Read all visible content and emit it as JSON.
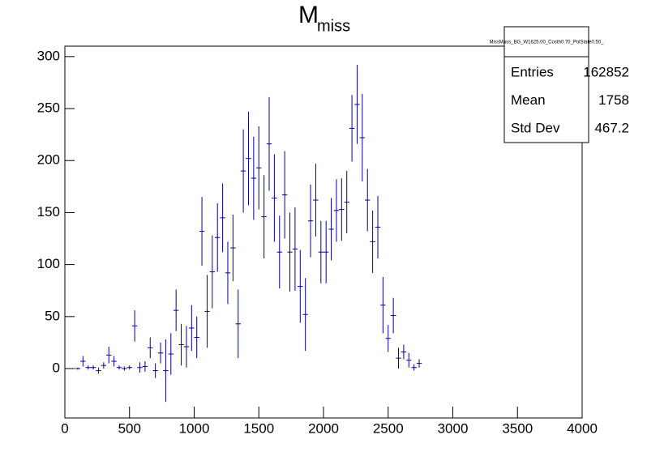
{
  "chart_data": {
    "type": "histogram",
    "title": "M",
    "title_subscript": "miss",
    "bins": [
      80,
      120,
      160,
      200,
      240,
      280,
      320,
      360,
      400,
      440,
      480,
      520,
      560,
      600,
      640,
      680,
      720,
      760,
      800,
      840,
      880,
      920,
      960,
      1000,
      1040,
      1080,
      1120,
      1160,
      1200,
      1240,
      1280,
      1320,
      1360,
      1400,
      1440,
      1480,
      1520,
      1560,
      1600,
      1640,
      1680,
      1720,
      1760,
      1800,
      1840,
      1880,
      1920,
      1960,
      2000,
      2040,
      2080,
      2120,
      2160,
      2200,
      2240,
      2280,
      2320,
      2360,
      2400,
      2440,
      2480,
      2520,
      2560,
      2600,
      2640,
      2680,
      2720,
      2760
    ],
    "values": [
      0,
      7,
      1,
      1,
      -2,
      3,
      13,
      7,
      1,
      0,
      1,
      41,
      1,
      2,
      20,
      -2,
      15,
      -2,
      14,
      56,
      23,
      21,
      39,
      30,
      132,
      55,
      93,
      126,
      145,
      92,
      116,
      43,
      190,
      202,
      183,
      193,
      146,
      216,
      164,
      112,
      167,
      112,
      115,
      79,
      52,
      142,
      162,
      112,
      112,
      134,
      152,
      153,
      160,
      231,
      254,
      222,
      162,
      122,
      136,
      61,
      29,
      51,
      10,
      16,
      8,
      1,
      5
    ],
    "errors": [
      1,
      5,
      2,
      2,
      3,
      3,
      8,
      5,
      2,
      2,
      2,
      15,
      5,
      5,
      10,
      7,
      10,
      30,
      20,
      20,
      20,
      20,
      22,
      20,
      33,
      35,
      35,
      33,
      33,
      30,
      32,
      33,
      40,
      45,
      40,
      40,
      40,
      45,
      42,
      35,
      42,
      38,
      40,
      35,
      35,
      35,
      35,
      30,
      30,
      30,
      30,
      30,
      30,
      32,
      38,
      42,
      30,
      30,
      30,
      27,
      13,
      17,
      10,
      7,
      7,
      3,
      4
    ],
    "color": "#000099",
    "xlim": [
      0,
      4000
    ],
    "xticks": [
      0,
      500,
      1000,
      1500,
      2000,
      2500,
      3000,
      3500,
      4000
    ],
    "ylim": [
      -47.5,
      310
    ],
    "yticks": [
      0,
      50,
      100,
      150,
      200,
      250,
      300
    ],
    "stats": {
      "name": "MissMass_BG_W1625.00_Costh0.70_PolState0.50_",
      "rows": [
        [
          "Entries",
          "162852"
        ],
        [
          "Mean",
          "1758"
        ],
        [
          "Std Dev",
          "467.2"
        ]
      ]
    }
  }
}
